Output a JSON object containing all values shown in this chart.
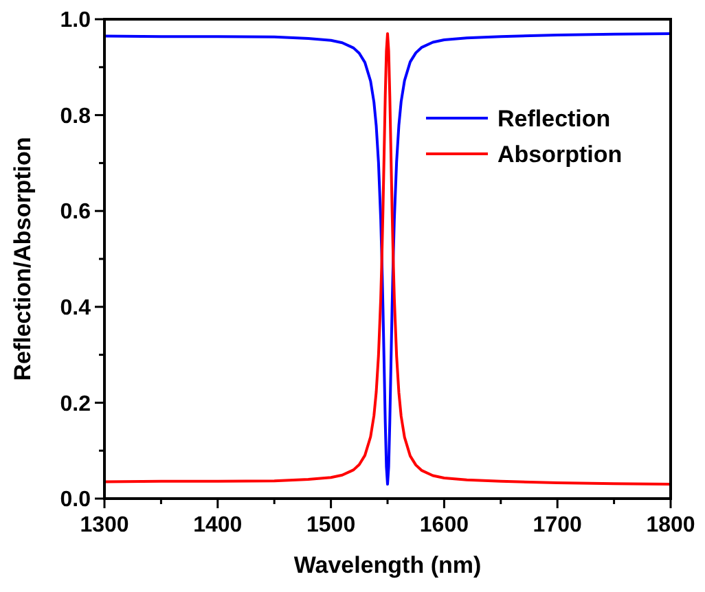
{
  "chart_data": {
    "type": "line",
    "xlabel": "Wavelength (nm)",
    "ylabel": "Reflection/Absorption",
    "xlim": [
      1300,
      1800
    ],
    "ylim": [
      0,
      1.0
    ],
    "xticks": [
      1300,
      {
        "value": 1350,
        "label": null
      },
      1400,
      {
        "value": 1450,
        "label": null
      },
      1500,
      {
        "value": 1550,
        "label": null
      },
      1600,
      {
        "value": 1650,
        "label": null
      },
      1700,
      {
        "value": 1750,
        "label": null
      },
      1800
    ],
    "yticks": [
      {
        "value": 0,
        "label": "0.0"
      },
      {
        "value": 0.1,
        "label": null
      },
      0.2,
      {
        "value": 0.3,
        "label": null
      },
      0.4,
      {
        "value": 0.5,
        "label": null
      },
      0.6,
      {
        "value": 0.7,
        "label": null
      },
      0.8,
      {
        "value": 0.9,
        "label": null
      },
      {
        "value": 1,
        "label": "1.0"
      }
    ],
    "x": [
      1300,
      1350,
      1400,
      1450,
      1480,
      1500,
      1510,
      1520,
      1525,
      1530,
      1535,
      1538,
      1540,
      1542,
      1544,
      1545,
      1546,
      1547,
      1548,
      1549,
      1550,
      1551,
      1552,
      1553,
      1554,
      1555,
      1556,
      1558,
      1560,
      1562,
      1565,
      1570,
      1575,
      1580,
      1590,
      1600,
      1620,
      1650,
      1700,
      1750,
      1800
    ],
    "series": [
      {
        "name": "Reflection",
        "color": "#0000ff",
        "values": [
          0.965,
          0.964,
          0.964,
          0.963,
          0.96,
          0.956,
          0.951,
          0.94,
          0.929,
          0.91,
          0.871,
          0.827,
          0.778,
          0.702,
          0.582,
          0.497,
          0.395,
          0.277,
          0.159,
          0.066,
          0.03,
          0.066,
          0.16,
          0.278,
          0.396,
          0.498,
          0.583,
          0.703,
          0.779,
          0.828,
          0.872,
          0.911,
          0.93,
          0.941,
          0.952,
          0.957,
          0.961,
          0.964,
          0.967,
          0.969,
          0.97
        ]
      },
      {
        "name": "Absorption",
        "color": "#ff0000",
        "values": [
          0.035,
          0.036,
          0.036,
          0.037,
          0.04,
          0.044,
          0.049,
          0.06,
          0.071,
          0.09,
          0.129,
          0.173,
          0.222,
          0.298,
          0.418,
          0.503,
          0.605,
          0.723,
          0.841,
          0.934,
          0.97,
          0.934,
          0.84,
          0.722,
          0.604,
          0.502,
          0.417,
          0.297,
          0.221,
          0.172,
          0.128,
          0.089,
          0.07,
          0.059,
          0.048,
          0.043,
          0.039,
          0.036,
          0.033,
          0.031,
          0.03
        ]
      }
    ],
    "legend": "top right",
    "grid": false,
    "line_style": "solid",
    "marker": "none"
  }
}
